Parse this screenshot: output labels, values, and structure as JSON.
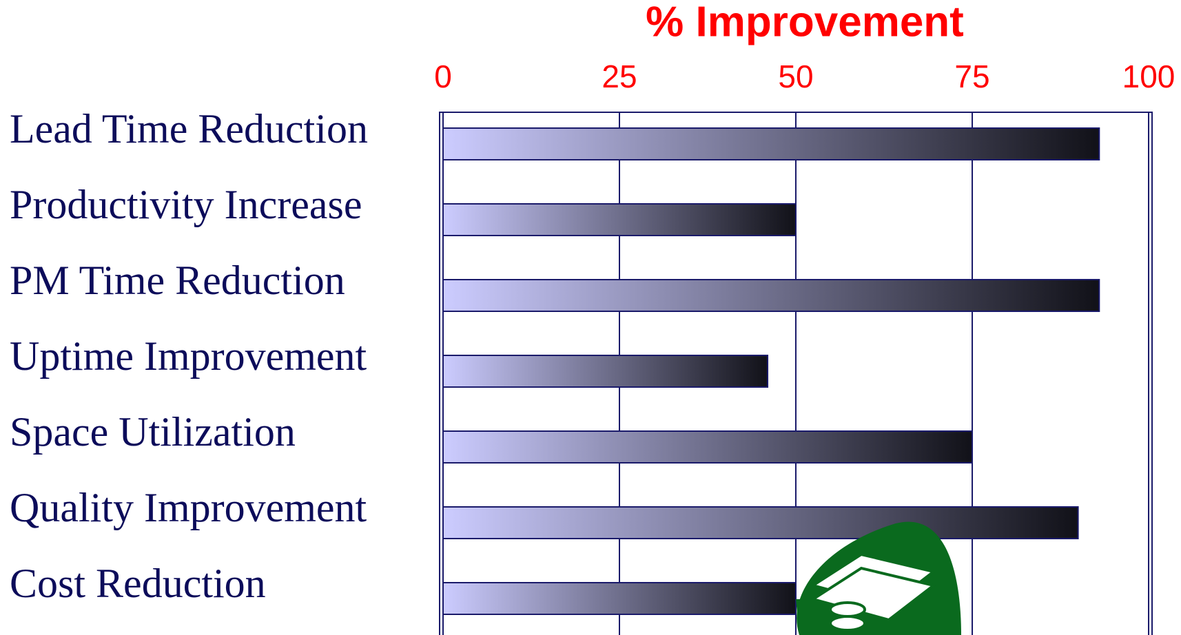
{
  "chart_data": {
    "type": "bar",
    "orientation": "horizontal",
    "title": "% Improvement",
    "categories": [
      "Lead Time Reduction",
      "Productivity Increase",
      "PM Time Reduction",
      "Uptime Improvement",
      "Space Utilization",
      "Quality Improvement",
      "Cost Reduction"
    ],
    "values": [
      93,
      50,
      93,
      46,
      75,
      90,
      50
    ],
    "color": "#ccccff",
    "xlim": [
      0,
      100
    ],
    "xticks": [
      0,
      25,
      50,
      75,
      100
    ],
    "grid": true
  }
}
